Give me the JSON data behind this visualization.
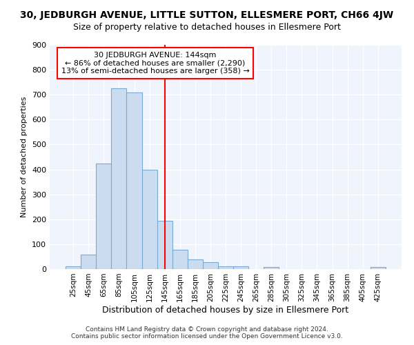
{
  "title": "30, JEDBURGH AVENUE, LITTLE SUTTON, ELLESMERE PORT, CH66 4JW",
  "subtitle": "Size of property relative to detached houses in Ellesmere Port",
  "xlabel": "Distribution of detached houses by size in Ellesmere Port",
  "ylabel": "Number of detached properties",
  "categories": [
    "25sqm",
    "45sqm",
    "65sqm",
    "85sqm",
    "105sqm",
    "125sqm",
    "145sqm",
    "165sqm",
    "185sqm",
    "205sqm",
    "225sqm",
    "245sqm",
    "265sqm",
    "285sqm",
    "305sqm",
    "325sqm",
    "345sqm",
    "365sqm",
    "385sqm",
    "405sqm",
    "425sqm"
  ],
  "values": [
    10,
    58,
    425,
    725,
    710,
    400,
    195,
    78,
    40,
    28,
    10,
    10,
    0,
    8,
    0,
    0,
    0,
    0,
    0,
    0,
    7
  ],
  "bar_color": "#ccdcf0",
  "bar_edge_color": "#7aaad0",
  "vline_color": "red",
  "vline_x": 145,
  "ylim": [
    0,
    900
  ],
  "yticks": [
    0,
    100,
    200,
    300,
    400,
    500,
    600,
    700,
    800,
    900
  ],
  "background_color": "#ffffff",
  "plot_bg_color": "#f0f4fc",
  "grid_color": "#ffffff",
  "annotation_text_line1": "30 JEDBURGH AVENUE: 144sqm",
  "annotation_text_line2": "← 86% of detached houses are smaller (2,290)",
  "annotation_text_line3": "13% of semi-detached houses are larger (358) →",
  "annotation_box_color": "white",
  "annotation_box_edge_color": "red",
  "footer_line1": "Contains HM Land Registry data © Crown copyright and database right 2024.",
  "footer_line2": "Contains public sector information licensed under the Open Government Licence v3.0.",
  "bin_width": 20,
  "title_fontsize": 10,
  "subtitle_fontsize": 9,
  "ylabel_fontsize": 8,
  "xlabel_fontsize": 9,
  "tick_fontsize": 7.5,
  "ytick_fontsize": 8,
  "annotation_fontsize": 8,
  "footer_fontsize": 6.5
}
